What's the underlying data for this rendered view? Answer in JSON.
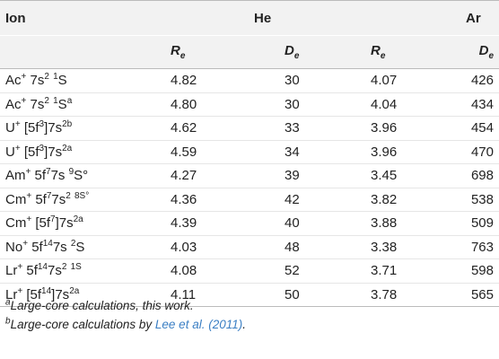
{
  "headers": {
    "ion": "Ion",
    "group_he": "He",
    "group_ar": "Ar",
    "r_sym": "R",
    "r_sub": "e",
    "d_sym": "D",
    "d_sub": "e"
  },
  "rows": [
    {
      "ion_base": "Ac",
      "ion_charge": "+",
      "config_pre": " 7s",
      "cfg_sup1": "2",
      "space": " ",
      "term_sup": "1",
      "term": "S",
      "note": "",
      "he_re": "4.82",
      "he_de": "30",
      "ar_re": "4.07",
      "ar_de": "426"
    },
    {
      "ion_base": "Ac",
      "ion_charge": "+",
      "config_pre": " 7s",
      "cfg_sup1": "2",
      "space": " ",
      "term_sup": "1",
      "term": "S",
      "note": "a",
      "he_re": "4.80",
      "he_de": "30",
      "ar_re": "4.04",
      "ar_de": "434"
    },
    {
      "ion_base": "U",
      "ion_charge": "+",
      "config_pre": " [5f",
      "cfg_sup1": "3",
      "space": "]7s",
      "term_sup": "2b",
      "term": "",
      "note": "",
      "he_re": "4.62",
      "he_de": "33",
      "ar_re": "3.96",
      "ar_de": "454"
    },
    {
      "ion_base": "U",
      "ion_charge": "+",
      "config_pre": " [5f",
      "cfg_sup1": "3",
      "space": "]7s",
      "term_sup": "2a",
      "term": "",
      "note": "",
      "he_re": "4.59",
      "he_de": "34",
      "ar_re": "3.96",
      "ar_de": "470"
    },
    {
      "ion_base": "Am",
      "ion_charge": "+",
      "config_pre": " 5f",
      "cfg_sup1": "7",
      "space": "7s ",
      "term_sup": "9",
      "term": "S°",
      "note": "",
      "he_re": "4.27",
      "he_de": "39",
      "ar_re": "3.45",
      "ar_de": "698"
    },
    {
      "ion_base": "Cm",
      "ion_charge": "+",
      "config_pre": " 5f",
      "cfg_sup1": "7",
      "space": "7s",
      "term_sup": "2",
      "term": " ",
      "note": "8S°",
      "he_re": "4.36",
      "he_de": "42",
      "ar_re": "3.82",
      "ar_de": "538"
    },
    {
      "ion_base": "Cm",
      "ion_charge": "+",
      "config_pre": " [5f",
      "cfg_sup1": "7",
      "space": "]7s",
      "term_sup": "2a",
      "term": "",
      "note": "",
      "he_re": "4.39",
      "he_de": "40",
      "ar_re": "3.88",
      "ar_de": "509"
    },
    {
      "ion_base": "No",
      "ion_charge": "+",
      "config_pre": " 5f",
      "cfg_sup1": "14",
      "space": "7s ",
      "term_sup": "2",
      "term": "S",
      "note": "",
      "he_re": "4.03",
      "he_de": "48",
      "ar_re": "3.38",
      "ar_de": "763"
    },
    {
      "ion_base": "Lr",
      "ion_charge": "+",
      "config_pre": " 5f",
      "cfg_sup1": "14",
      "space": "7s",
      "term_sup": "2",
      "term": " ",
      "note": "1S",
      "he_re": "4.08",
      "he_de": "52",
      "ar_re": "3.71",
      "ar_de": "598"
    },
    {
      "ion_base": "Lr",
      "ion_charge": "+",
      "config_pre": " [5f",
      "cfg_sup1": "14",
      "space": "]7s",
      "term_sup": "2a",
      "term": "",
      "note": "",
      "he_re": "4.11",
      "he_de": "50",
      "ar_re": "3.78",
      "ar_de": "565"
    }
  ],
  "footnotes": {
    "a_mark": "a",
    "a_text": "Large-core calculations, this work.",
    "b_mark": "b",
    "b_text_pre": "Large-core calculations by ",
    "b_ref": "Lee et al. (2011)",
    "b_text_post": "."
  }
}
